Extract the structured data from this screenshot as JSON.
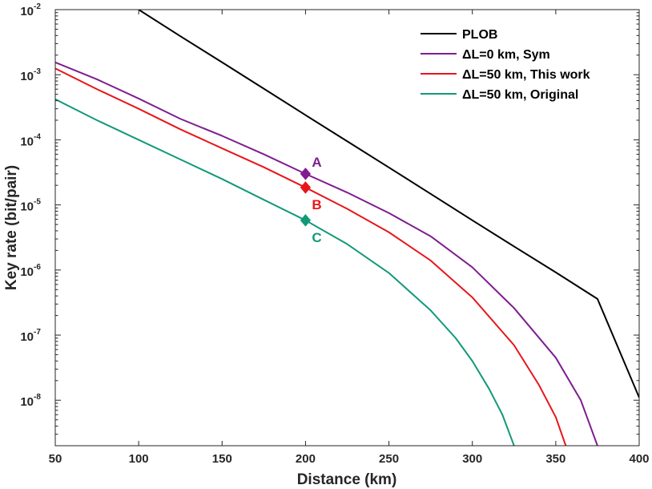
{
  "chart_data": {
    "type": "line",
    "yscale": "log",
    "xlabel": "Distance (km)",
    "ylabel": "Key rate (bit/pair)",
    "xlim": [
      50,
      400
    ],
    "ylim": [
      2e-09,
      0.01
    ],
    "x_ticks": [
      "50",
      "100",
      "150",
      "200",
      "250",
      "300",
      "350",
      "400"
    ],
    "y_ticks": [
      {
        "base": "10",
        "exp": "-8",
        "value": 1e-08
      },
      {
        "base": "10",
        "exp": "-7",
        "value": 1e-07
      },
      {
        "base": "10",
        "exp": "-6",
        "value": 1e-06
      },
      {
        "base": "10",
        "exp": "-5",
        "value": 1e-05
      },
      {
        "base": "10",
        "exp": "-4",
        "value": 0.0001
      },
      {
        "base": "10",
        "exp": "-3",
        "value": 0.001
      },
      {
        "base": "10",
        "exp": "-2",
        "value": 0.01
      }
    ],
    "series": [
      {
        "name": "PLOB",
        "color": "#000000",
        "x": [
          100,
          125,
          150,
          175,
          200,
          225,
          250,
          275,
          300,
          325,
          350,
          375,
          400
        ],
        "y": [
          0.01,
          0.0039,
          0.00155,
          0.00061,
          0.00024,
          9.5e-05,
          3.76e-05,
          1.48e-05,
          5.8e-06,
          2.3e-06,
          9.2e-07,
          3.6e-07,
          1.1e-08
        ]
      },
      {
        "name": "ΔL=0 km, Sym",
        "color": "#7E1E8F",
        "x": [
          50,
          75,
          100,
          125,
          150,
          175,
          200,
          225,
          250,
          275,
          300,
          325,
          350,
          365,
          375
        ],
        "y": [
          0.00155,
          0.00085,
          0.00043,
          0.00021,
          0.000115,
          6e-05,
          3e-05,
          1.55e-05,
          7.5e-06,
          3.3e-06,
          1.1e-06,
          2.6e-07,
          4.5e-08,
          1e-08,
          2e-09
        ]
      },
      {
        "name": "ΔL=50 km, This work",
        "color": "#E8161B",
        "x": [
          50,
          75,
          100,
          125,
          150,
          175,
          200,
          225,
          250,
          275,
          300,
          325,
          340,
          350,
          356
        ],
        "y": [
          0.00125,
          0.0006,
          0.0003,
          0.000145,
          7.4e-05,
          3.8e-05,
          1.85e-05,
          8.7e-06,
          3.8e-06,
          1.4e-06,
          3.8e-07,
          7e-08,
          1.7e-08,
          5.5e-09,
          2e-09
        ]
      },
      {
        "name": "ΔL=50 km, Original",
        "color": "#12997A",
        "x": [
          50,
          75,
          100,
          125,
          150,
          175,
          200,
          225,
          250,
          275,
          290,
          300,
          310,
          318,
          325
        ],
        "y": [
          0.00042,
          0.0002,
          0.0001,
          5e-05,
          2.5e-05,
          1.2e-05,
          5.8e-06,
          2.5e-06,
          9e-07,
          2.4e-07,
          9e-08,
          4e-08,
          1.5e-08,
          6e-09,
          2e-09
        ]
      }
    ],
    "points": [
      {
        "label": "A",
        "x": 200,
        "y": 3e-05,
        "color": "#7E1E8F",
        "pos": "above-right"
      },
      {
        "label": "B",
        "x": 200,
        "y": 1.85e-05,
        "color": "#E8161B",
        "pos": "below-right"
      },
      {
        "label": "C",
        "x": 200,
        "y": 5.8e-06,
        "color": "#12997A",
        "pos": "below-right"
      }
    ],
    "legend": {
      "position": "top-right",
      "entries": [
        "PLOB",
        "ΔL=0 km, Sym",
        "ΔL=50 km, This work",
        "ΔL=50 km, Original"
      ]
    }
  }
}
